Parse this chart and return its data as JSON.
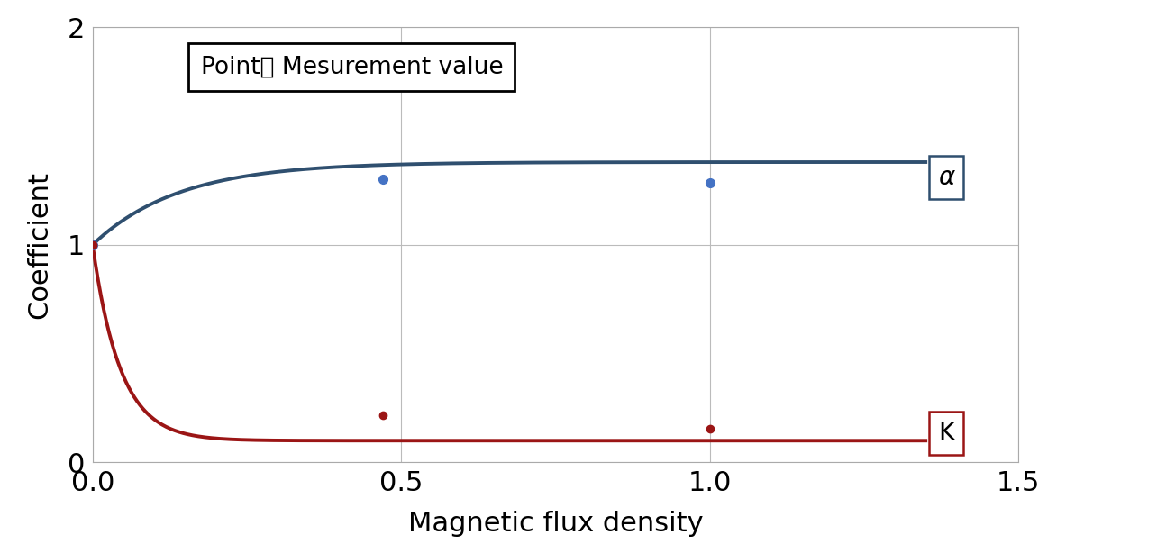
{
  "xlabel": "Magnetic flux density",
  "ylabel": "Coefficient",
  "xlim": [
    0,
    1.5
  ],
  "ylim": [
    0,
    2
  ],
  "xticks": [
    0,
    0.5,
    1.0,
    1.5
  ],
  "yticks": [
    0,
    1,
    2
  ],
  "legend_text": "Point： Mesurement value",
  "alpha_label": "α",
  "K_label": "K",
  "alpha_color": "#2f4f6f",
  "K_color": "#9b1515",
  "alpha_points_x": [
    0.0,
    0.47,
    1.0
  ],
  "alpha_points_y": [
    1.0,
    1.3,
    1.285
  ],
  "K_points_x": [
    0.0,
    0.47,
    1.0
  ],
  "K_points_y": [
    1.0,
    0.215,
    0.155
  ],
  "alpha_asymptote": 1.38,
  "alpha_rate": 0.14,
  "K_asymptote": 0.1,
  "K_rate": 0.045,
  "background_color": "#ffffff",
  "grid_color": "#bbbbbb"
}
